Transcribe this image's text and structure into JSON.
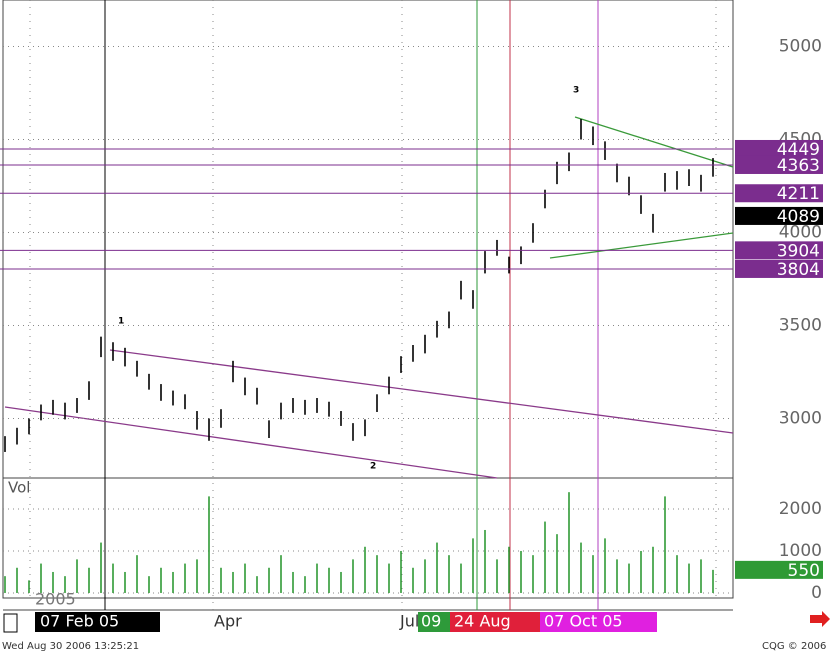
{
  "chart_data": [
    {
      "type": "ohlc",
      "color": "#000000",
      "high": [
        2905,
        2950,
        3000,
        3075,
        3100,
        3085,
        3110,
        3200,
        3440,
        3410,
        3380,
        3310,
        3240,
        3185,
        3150,
        3130,
        3040,
        3000,
        3050,
        3310,
        3220,
        3165,
        2990,
        3085,
        3110,
        3100,
        3110,
        3090,
        3040,
        2975,
        2995,
        3130,
        3225,
        3335,
        3395,
        3450,
        3525,
        3575,
        3740,
        3690,
        3900,
        3960,
        3870,
        3925,
        4050,
        4230,
        4380,
        4430,
        4610,
        4570,
        4490,
        4370,
        4300,
        4200,
        4100,
        4320,
        4330,
        4340,
        4310,
        4400
      ],
      "low": [
        2820,
        2860,
        2915,
        2990,
        3020,
        2995,
        3030,
        3100,
        3330,
        3310,
        3280,
        3225,
        3155,
        3095,
        3070,
        3050,
        2940,
        2880,
        2950,
        3195,
        3125,
        3075,
        2895,
        2995,
        3030,
        3020,
        3030,
        3010,
        2960,
        2880,
        2905,
        3035,
        3130,
        3245,
        3305,
        3350,
        3435,
        3485,
        3640,
        3590,
        3780,
        3875,
        3780,
        3830,
        3945,
        4130,
        4260,
        4330,
        4500,
        4470,
        4390,
        4270,
        4200,
        4100,
        4000,
        4220,
        4230,
        4250,
        4220,
        4300
      ],
      "ylim": [
        2680,
        5250
      ],
      "yticks": [
        3000,
        3500,
        4000,
        4500,
        5000
      ],
      "grid": true,
      "levels": [
        4449,
        4363,
        4211,
        4089,
        3904,
        3804
      ],
      "level_colors": [
        "#7b2d8e",
        "#7b2d8e",
        "#7b2d8e",
        "#000000",
        "#7b2d8e",
        "#7b2d8e"
      ],
      "wave_labels": [
        "1",
        "2",
        "3"
      ]
    },
    {
      "type": "bar",
      "title": "Vol",
      "color": "#2f9a35",
      "values": [
        400,
        600,
        300,
        700,
        500,
        400,
        800,
        600,
        1200,
        700,
        500,
        900,
        400,
        600,
        500,
        700,
        800,
        2300,
        600,
        500,
        700,
        400,
        600,
        900,
        500,
        400,
        700,
        600,
        500,
        800,
        1100,
        900,
        700,
        1000,
        600,
        800,
        1200,
        900,
        700,
        1300,
        1500,
        800,
        1100,
        1000,
        900,
        1700,
        1400,
        2400,
        1200,
        900,
        1300,
        800,
        700,
        1000,
        1100,
        2300,
        900,
        700,
        800,
        550
      ],
      "ylim": [
        -120,
        2690
      ],
      "yticks": [
        0,
        1000,
        2000
      ],
      "current": 550
    }
  ],
  "time_axis": {
    "year": "2005",
    "labels": [
      "07 Feb 05",
      "Apr",
      "Jul",
      "09",
      "24 Aug",
      "07 Oct 05"
    ]
  },
  "footer": {
    "timestamp": "Wed Aug 30 2006 13:25:21",
    "copyright": "CQG © 2006"
  }
}
